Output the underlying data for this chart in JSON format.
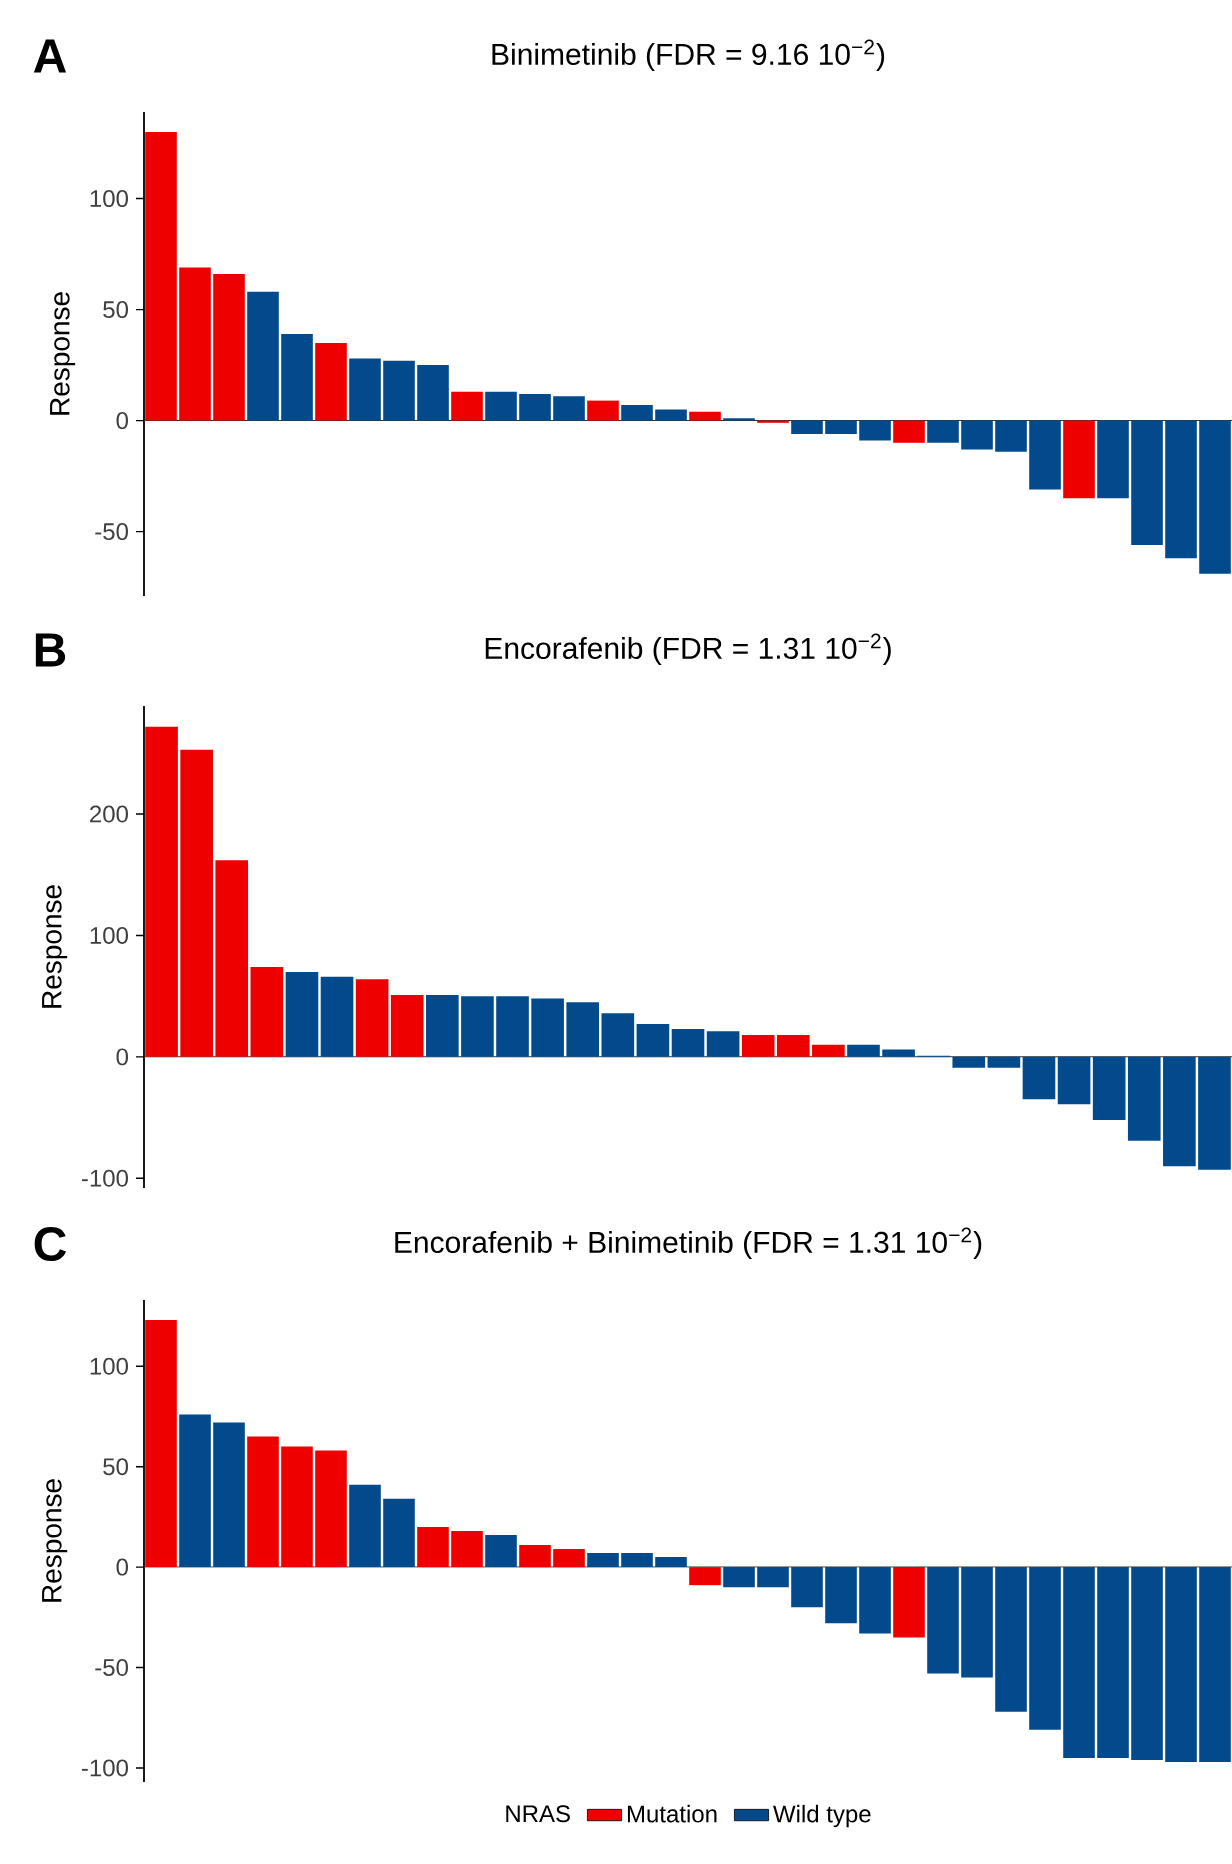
{
  "chart_data": [
    {
      "type": "bar",
      "title": "Binimetinib (FDR = 9.16    10$^{−2}$)",
      "ylabel": "Response",
      "annotations": [
        "A"
      ],
      "categories": [
        null,
        null,
        null,
        null,
        null,
        null,
        null,
        null,
        null,
        null,
        null,
        null,
        null,
        null,
        null,
        null,
        null,
        null,
        null,
        null,
        null,
        null,
        null,
        null,
        null,
        null,
        null,
        null,
        null,
        null,
        null,
        null
      ],
      "series": [
        {
          "color": "#ee0000",
          "values": [
            130,
            69,
            66,
            null,
            null,
            35,
            null,
            null,
            null,
            13,
            null,
            null,
            null,
            9,
            null,
            null,
            4,
            null,
            -1,
            null,
            null,
            null,
            -10,
            null,
            null,
            null,
            null,
            -35,
            null,
            null,
            null,
            null
          ]
        },
        {
          "color": "#024a8c",
          "values": [
            null,
            null,
            null,
            58,
            39,
            null,
            28,
            27,
            25,
            null,
            13,
            12,
            11,
            null,
            7,
            5,
            null,
            1,
            null,
            -6,
            -6,
            -9,
            null,
            -10,
            -13,
            -14,
            -31,
            null,
            -35,
            -56,
            -62,
            -69
          ]
        }
      ],
      "ylim": [
        -79,
        139
      ],
      "yticks": [
        -50,
        0,
        50,
        100
      ],
      "ref_lines": [
        {
          "axis": "y",
          "value": 0,
          "color": "#333333"
        }
      ],
      "grid": false,
      "legend": false
    },
    {
      "type": "bar",
      "title": "Encorafenib (FDR = 1.31    10$^{−2}$)",
      "ylabel": "Response",
      "annotations": [
        "B"
      ],
      "categories": [
        null,
        null,
        null,
        null,
        null,
        null,
        null,
        null,
        null,
        null,
        null,
        null,
        null,
        null,
        null,
        null,
        null,
        null,
        null,
        null,
        null,
        null,
        null,
        null,
        null,
        null,
        null,
        null,
        null,
        null,
        null
      ],
      "series": [
        {
          "color": "#ee0000",
          "values": [
            272,
            253,
            162,
            74,
            null,
            null,
            64,
            51,
            null,
            null,
            null,
            null,
            null,
            null,
            null,
            null,
            null,
            18,
            18,
            10,
            null,
            null,
            null,
            null,
            null,
            null,
            null,
            null,
            null,
            null,
            null
          ]
        },
        {
          "color": "#024a8c",
          "values": [
            null,
            null,
            null,
            null,
            70,
            66,
            null,
            null,
            51,
            50,
            50,
            48,
            45,
            36,
            27,
            23,
            21,
            null,
            null,
            null,
            10,
            6,
            1,
            -9,
            -9,
            -35,
            -39,
            -52,
            -69,
            -90,
            -93
          ]
        }
      ],
      "ylim": [
        -108,
        289
      ],
      "yticks": [
        -100,
        0,
        100,
        200
      ],
      "ref_lines": [
        {
          "axis": "y",
          "value": 0,
          "color": "#333333"
        }
      ],
      "grid": false,
      "legend": false
    },
    {
      "type": "bar",
      "title": "Encorafenib + Binimetinib (FDR = 1.31    10$^{−2}$)",
      "ylabel": "Response",
      "annotations": [
        "C"
      ],
      "legend_title": "NRAS",
      "categories": [
        null,
        null,
        null,
        null,
        null,
        null,
        null,
        null,
        null,
        null,
        null,
        null,
        null,
        null,
        null,
        null,
        null,
        null,
        null,
        null,
        null,
        null,
        null,
        null,
        null,
        null,
        null,
        null,
        null,
        null,
        null,
        null
      ],
      "series": [
        {
          "name": "Mutation",
          "color": "#ee0000",
          "values": [
            123,
            null,
            null,
            65,
            60,
            58,
            null,
            null,
            20,
            18,
            null,
            11,
            9,
            null,
            null,
            null,
            -9,
            null,
            null,
            null,
            null,
            null,
            -35,
            null,
            null,
            null,
            null,
            null,
            null,
            null,
            null,
            null
          ]
        },
        {
          "name": "Wild type",
          "color": "#024a8c",
          "values": [
            null,
            76,
            72,
            null,
            null,
            null,
            41,
            34,
            null,
            null,
            16,
            null,
            null,
            7,
            7,
            5,
            null,
            -10,
            -10,
            -20,
            -28,
            -33,
            null,
            -53,
            -55,
            -72,
            -81,
            -95,
            -95,
            -96,
            -97,
            -97
          ]
        }
      ],
      "ylim": [
        -107,
        133
      ],
      "yticks": [
        -100,
        -50,
        0,
        50,
        100
      ],
      "ref_lines": [
        {
          "axis": "y",
          "value": 0,
          "color": "#333333"
        }
      ],
      "grid": false,
      "legend": "bottom"
    }
  ]
}
